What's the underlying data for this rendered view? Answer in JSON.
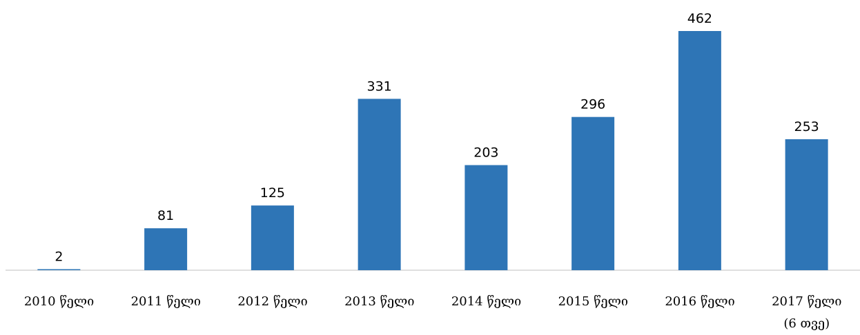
{
  "chart_data": {
    "type": "bar",
    "categories": [
      "2010 წელი",
      "2011 წელი",
      "2012 წელი",
      "2013 წელი",
      "2014 წელი",
      "2015 წელი",
      "2016 წელი",
      "2017 წელი\n(6 თვე)"
    ],
    "values": [
      2,
      81,
      125,
      331,
      203,
      296,
      462,
      253
    ],
    "color": "#2e75b6"
  }
}
